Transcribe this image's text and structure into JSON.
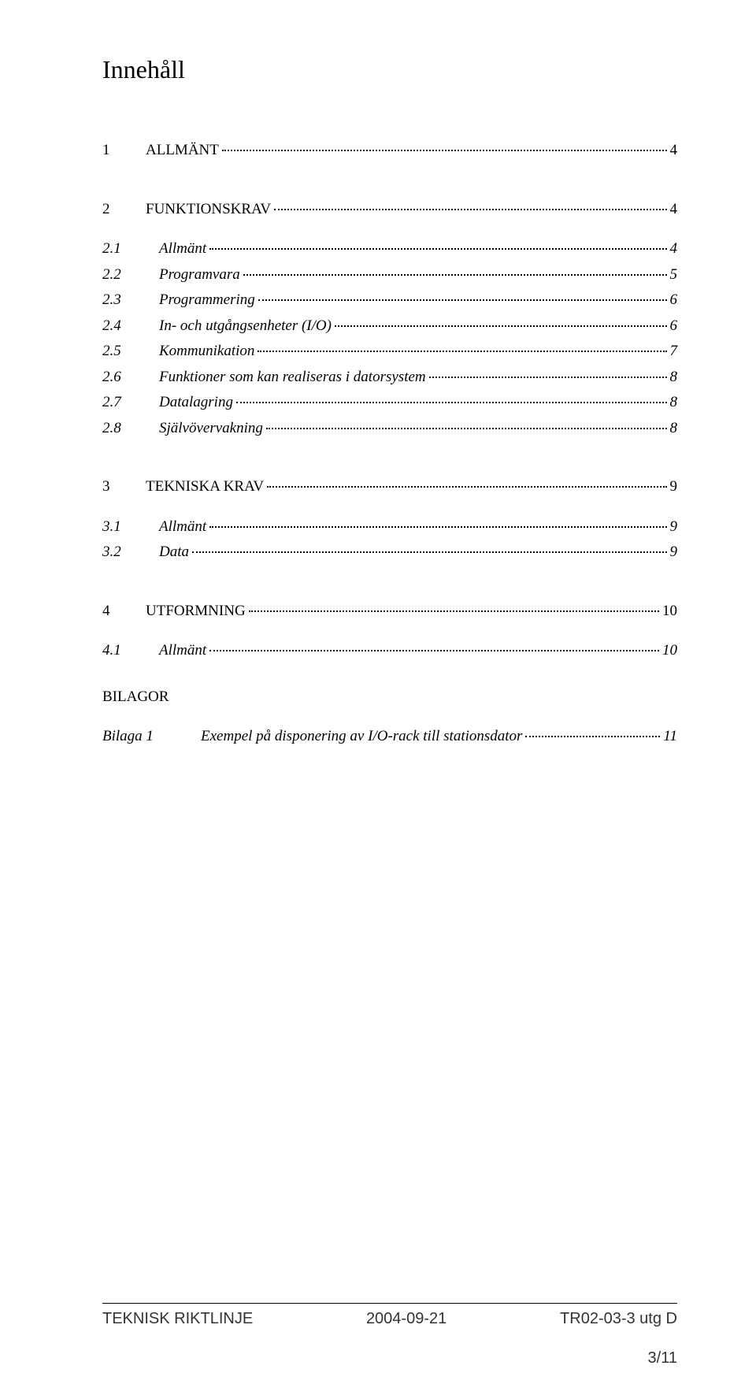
{
  "title": "Innehåll",
  "toc_level1": [
    {
      "num": "1",
      "label": "ALLMÄNT",
      "page": "4"
    },
    {
      "num": "2",
      "label": "FUNKTIONSKRAV",
      "page": "4"
    },
    {
      "num": "3",
      "label": "TEKNISKA KRAV",
      "page": "9"
    },
    {
      "num": "4",
      "label": "UTFORMNING",
      "page": "10"
    }
  ],
  "sec2": [
    {
      "num": "2.1",
      "label": "Allmänt",
      "page": "4"
    },
    {
      "num": "2.2",
      "label": "Programvara",
      "page": "5"
    },
    {
      "num": "2.3",
      "label": "Programmering",
      "page": "6"
    },
    {
      "num": "2.4",
      "label": "In- och utgångsenheter (I/O)",
      "page": "6"
    },
    {
      "num": "2.5",
      "label": "Kommunikation",
      "page": "7"
    },
    {
      "num": "2.6",
      "label": "Funktioner som kan realiseras i datorsystem",
      "page": "8"
    },
    {
      "num": "2.7",
      "label": "Datalagring",
      "page": "8"
    },
    {
      "num": "2.8",
      "label": "Självövervakning",
      "page": "8"
    }
  ],
  "sec3": [
    {
      "num": "3.1",
      "label": "Allmänt",
      "page": "9"
    },
    {
      "num": "3.2",
      "label": "Data",
      "page": "9"
    }
  ],
  "sec4": [
    {
      "num": "4.1",
      "label": "Allmänt",
      "page": "10"
    }
  ],
  "appendix_head": "BILAGOR",
  "appendix": {
    "label": "Bilaga 1",
    "text": "Exempel på disponering av I/O-rack  till stationsdator",
    "page": "11"
  },
  "footer": {
    "left": "TEKNISK RIKTLINJE",
    "center": "2004-09-21",
    "right": "TR02-03-3 utg D"
  },
  "page_number": "3/11"
}
